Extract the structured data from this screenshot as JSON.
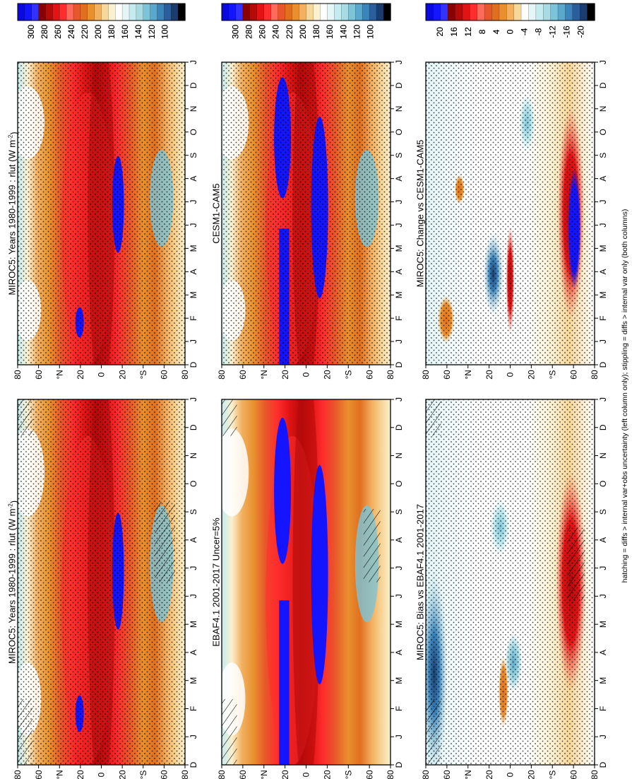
{
  "figure": {
    "footnote": "hatching = diffs > internal var+obs uncertainty (left column only); stippling = diffs > internal var only (both columns)"
  },
  "palettes": {
    "absolute": [
      "#0a0ae0",
      "#1414ff",
      "#3232ff",
      "#8b0000",
      "#b40a0a",
      "#e11414",
      "#ff2d2d",
      "#ff6a5a",
      "#e8572a",
      "#e07020",
      "#e8902e",
      "#f2b060",
      "#f7d79a",
      "#fbf0d0",
      "#ffffff",
      "#e4f6f8",
      "#c4ecf0",
      "#a8dbe4",
      "#7cc4d8",
      "#5aa8cc",
      "#3c84bc",
      "#2a5e9c",
      "#1a3c6e",
      "#000000"
    ],
    "difference": [
      "#0a0ae0",
      "#1414ff",
      "#3232ff",
      "#8b0000",
      "#b40a0a",
      "#e11414",
      "#ff2d2d",
      "#ff6a5a",
      "#e8572a",
      "#e07020",
      "#e8902e",
      "#f2b060",
      "#f7d79a",
      "#ffffff",
      "#e4f6f8",
      "#c4ecf0",
      "#a8dbe4",
      "#7cc4d8",
      "#5aa8cc",
      "#3c84bc",
      "#2a5e9c",
      "#1a3c6e",
      "#000000"
    ]
  },
  "colorbars": {
    "absolute": [
      "300",
      "280",
      "260",
      "240",
      "220",
      "200",
      "180",
      "160",
      "140",
      "120",
      "100"
    ],
    "difference": [
      "20",
      "16",
      "12",
      "8",
      "4",
      "0",
      "-4",
      "-8",
      "-12",
      "-16",
      "-20"
    ]
  },
  "axes": {
    "months": [
      "D",
      "J",
      "F",
      "M",
      "A",
      "M",
      "J",
      "J",
      "A",
      "S",
      "O",
      "N",
      "D",
      "J"
    ],
    "latitudes": [
      "80",
      "60",
      "°N",
      "20",
      "0",
      "20",
      "°S",
      "60",
      "80"
    ]
  },
  "chart_data": [
    {
      "type": "heatmap",
      "panel": "top-left",
      "title": "MIROC5: Years 1980-1999 : rlut (W m",
      "title_sup": "-2",
      "title_end": ")",
      "x": "month",
      "y": "latitude",
      "zlim": [
        100,
        300
      ],
      "overlay": [
        "hatching",
        "stippling"
      ]
    },
    {
      "type": "heatmap",
      "panel": "middle-left",
      "title": "EBAF4.1 2001-2017 Uncer=5%",
      "x": "month",
      "y": "latitude",
      "zlim": [
        100,
        300
      ],
      "overlay": [
        "hatching"
      ]
    },
    {
      "type": "heatmap",
      "panel": "bottom-left",
      "title": "MIROC5: Bias vs EBAF4.1 2001-2017",
      "x": "month",
      "y": "latitude",
      "zlim": [
        -20,
        20
      ],
      "overlay": [
        "hatching",
        "stippling"
      ]
    },
    {
      "type": "heatmap",
      "panel": "top-right",
      "title": "MIROC5: Years 1980-1999 : rlut (W m",
      "title_sup": "-2",
      "title_end": ")",
      "x": "month",
      "y": "latitude",
      "zlim": [
        100,
        300
      ],
      "overlay": [
        "stippling"
      ]
    },
    {
      "type": "heatmap",
      "panel": "middle-right",
      "title": "CESM1-CAM5",
      "x": "month",
      "y": "latitude",
      "zlim": [
        100,
        300
      ],
      "overlay": [
        "stippling"
      ]
    },
    {
      "type": "heatmap",
      "panel": "bottom-right",
      "title": "MIROC5: Change vs CESM1-CAM5",
      "x": "month",
      "y": "latitude",
      "zlim": [
        -20,
        20
      ],
      "overlay": [
        "stippling"
      ]
    }
  ]
}
